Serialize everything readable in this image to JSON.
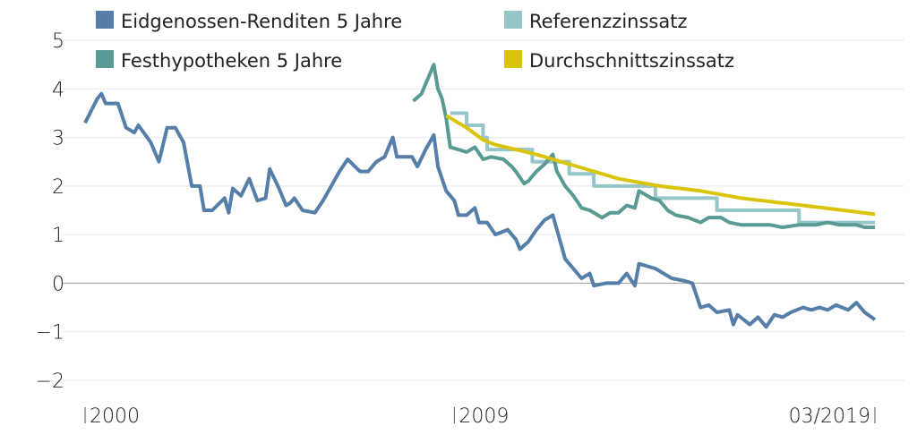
{
  "chart_data": {
    "type": "line",
    "xlim": [
      2000,
      2019.25
    ],
    "ylim": [
      -2,
      5
    ],
    "grid": true,
    "legend_placement": "top",
    "yticks": [
      -2,
      -1,
      0,
      1,
      2,
      3,
      4,
      5
    ],
    "ytick_labels": [
      "−2",
      "−1",
      "0",
      "1",
      "2",
      "3",
      "4",
      "5"
    ],
    "xticks": [
      {
        "x": 2000,
        "label": "2000"
      },
      {
        "x": 2009,
        "label": "2009"
      },
      {
        "x": 2019.25,
        "label": "03/2019"
      }
    ],
    "series": [
      {
        "name": "Eidgenossen-Renditen 5 Jahre",
        "color": "#557fa8",
        "x": [
          2000.0,
          2000.3,
          2000.4,
          2000.5,
          2000.8,
          2001.0,
          2001.2,
          2001.3,
          2001.6,
          2001.8,
          2002.0,
          2002.2,
          2002.4,
          2002.6,
          2002.8,
          2002.9,
          2003.1,
          2003.4,
          2003.5,
          2003.6,
          2003.8,
          2004.0,
          2004.2,
          2004.4,
          2004.5,
          2004.7,
          2004.9,
          2005.0,
          2005.1,
          2005.3,
          2005.6,
          2005.8,
          2006.0,
          2006.2,
          2006.4,
          2006.7,
          2006.9,
          2007.1,
          2007.3,
          2007.5,
          2007.6,
          2007.97,
          2008.1,
          2008.3,
          2008.5,
          2008.6,
          2008.8,
          2009.0,
          2009.1,
          2009.3,
          2009.5,
          2009.6,
          2009.8,
          2010.0,
          2010.3,
          2010.5,
          2010.6,
          2010.8,
          2011.0,
          2011.2,
          2011.4,
          2011.5,
          2011.7,
          2011.9,
          2012.1,
          2012.3,
          2012.4,
          2012.7,
          2013.0,
          2013.2,
          2013.4,
          2013.5,
          2013.9,
          2014.1,
          2014.3,
          2014.6,
          2014.8,
          2015.0,
          2015.2,
          2015.4,
          2015.7,
          2015.8,
          2015.9,
          2016.2,
          2016.4,
          2016.6,
          2016.8,
          2017.0,
          2017.2,
          2017.5,
          2017.7,
          2017.9,
          2018.1,
          2018.3,
          2018.6,
          2018.8,
          2019.0,
          2019.25
        ],
        "y": [
          3.3,
          3.8,
          3.9,
          3.7,
          3.7,
          3.2,
          3.1,
          3.25,
          2.9,
          2.5,
          3.2,
          3.2,
          2.9,
          2.0,
          2.0,
          1.5,
          1.5,
          1.75,
          1.45,
          1.95,
          1.8,
          2.15,
          1.7,
          1.75,
          2.35,
          2.0,
          1.6,
          1.65,
          1.75,
          1.5,
          1.45,
          1.7,
          2.0,
          2.3,
          2.55,
          2.3,
          2.3,
          2.5,
          2.6,
          3.0,
          2.6,
          2.6,
          2.4,
          2.75,
          3.05,
          2.4,
          1.9,
          1.7,
          1.4,
          1.4,
          1.55,
          1.25,
          1.25,
          1.0,
          1.1,
          0.9,
          0.7,
          0.85,
          1.1,
          1.3,
          1.4,
          1.1,
          0.5,
          0.3,
          0.1,
          0.2,
          -0.05,
          0.0,
          0.0,
          0.2,
          -0.05,
          0.4,
          0.3,
          0.2,
          0.1,
          0.05,
          0.0,
          -0.5,
          -0.45,
          -0.6,
          -0.55,
          -0.85,
          -0.65,
          -0.85,
          -0.7,
          -0.9,
          -0.65,
          -0.7,
          -0.6,
          -0.5,
          -0.55,
          -0.5,
          -0.55,
          -0.45,
          -0.55,
          -0.4,
          -0.6,
          -0.75
        ]
      },
      {
        "name": "Referenzzinssatz",
        "color": "#97c6c8",
        "step": true,
        "x": [
          2008.9,
          2009.3,
          2009.7,
          2009.8,
          2010.9,
          2011.8,
          2012.4,
          2013.9,
          2015.4,
          2017.4,
          2019.25
        ],
        "y": [
          3.5,
          3.25,
          3.0,
          2.75,
          2.5,
          2.25,
          2.0,
          1.75,
          1.5,
          1.25,
          1.25
        ]
      },
      {
        "name": "Festhypotheken 5 Jahre",
        "color": "#5a9a94",
        "x": [
          2008.0,
          2008.2,
          2008.3,
          2008.5,
          2008.6,
          2008.7,
          2008.8,
          2008.9,
          2009.1,
          2009.3,
          2009.5,
          2009.7,
          2009.9,
          2010.2,
          2010.4,
          2010.5,
          2010.7,
          2010.8,
          2011.0,
          2011.2,
          2011.4,
          2011.5,
          2011.7,
          2011.9,
          2012.1,
          2012.3,
          2012.6,
          2012.8,
          2013.0,
          2013.2,
          2013.4,
          2013.5,
          2013.8,
          2014.0,
          2014.2,
          2014.4,
          2014.7,
          2015.0,
          2015.2,
          2015.5,
          2015.7,
          2016.0,
          2016.4,
          2016.7,
          2017.0,
          2017.4,
          2017.8,
          2018.1,
          2018.4,
          2018.8,
          2019.0,
          2019.25
        ],
        "y": [
          3.75,
          3.9,
          4.1,
          4.5,
          4.0,
          3.8,
          3.4,
          2.8,
          2.75,
          2.7,
          2.8,
          2.55,
          2.6,
          2.55,
          2.4,
          2.3,
          2.05,
          2.1,
          2.3,
          2.45,
          2.65,
          2.3,
          2.0,
          1.8,
          1.55,
          1.5,
          1.35,
          1.45,
          1.45,
          1.6,
          1.55,
          1.9,
          1.75,
          1.7,
          1.5,
          1.4,
          1.35,
          1.25,
          1.35,
          1.35,
          1.25,
          1.2,
          1.2,
          1.2,
          1.15,
          1.2,
          1.2,
          1.25,
          1.2,
          1.2,
          1.15,
          1.15
        ]
      },
      {
        "name": "Durchschnittszinssatz",
        "color": "#d9c40a",
        "x": [
          2008.8,
          2009.3,
          2009.7,
          2010.0,
          2011.0,
          2012.0,
          2013.0,
          2014.0,
          2015.0,
          2016.0,
          2017.0,
          2018.0,
          2019.25
        ],
        "y": [
          3.45,
          3.2,
          2.95,
          2.85,
          2.65,
          2.4,
          2.15,
          2.0,
          1.9,
          1.75,
          1.65,
          1.55,
          1.42
        ]
      }
    ]
  }
}
